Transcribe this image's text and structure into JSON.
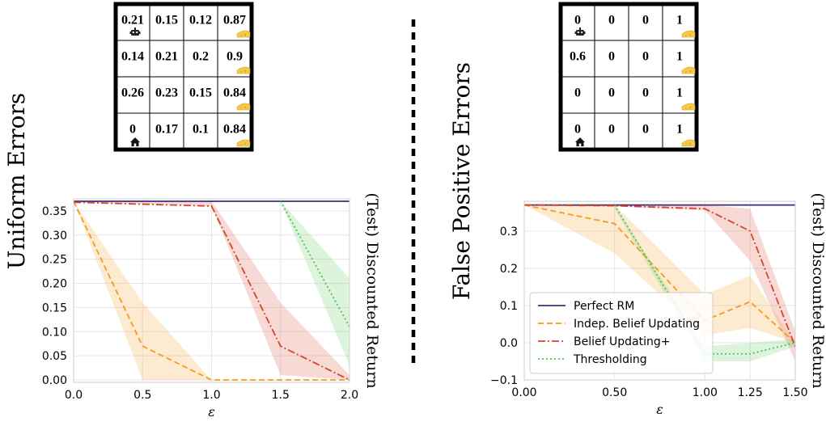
{
  "colors": {
    "perfect_rm": "#3f2b7a",
    "indep_belief": "#f59b1a",
    "belief_updating_plus": "#d6452b",
    "thresholding": "#4fc24f",
    "grid": "#e6e6e6",
    "divider": "#000000"
  },
  "icons": {
    "agent": "robot-icon",
    "goal": "cheese-icon",
    "home": "home-icon"
  },
  "left_panel": {
    "row_label": "Uniform Errors",
    "grid_values": [
      [
        "0.21",
        "0.15",
        "0.12",
        "0.87"
      ],
      [
        "0.14",
        "0.21",
        "0.2",
        "0.9"
      ],
      [
        "0.26",
        "0.23",
        "0.15",
        "0.84"
      ],
      [
        "0",
        "0.17",
        "0.1",
        "0.84"
      ]
    ]
  },
  "right_panel": {
    "row_label": "False Positive Errors",
    "grid_values": [
      [
        "0",
        "0",
        "0",
        "1"
      ],
      [
        "0.6",
        "0",
        "0",
        "1"
      ],
      [
        "0",
        "0",
        "0",
        "1"
      ],
      [
        "0",
        "0",
        "0",
        "1"
      ]
    ]
  },
  "chart_data": [
    {
      "type": "line",
      "xlabel": "ε",
      "ylabel": "(Test) Discounted Return",
      "x_ticks": [
        "0.0",
        "0.5",
        "1.0",
        "1.5",
        "2.0"
      ],
      "y_ticks": [
        "0.00",
        "0.05",
        "0.10",
        "0.15",
        "0.20",
        "0.25",
        "0.30",
        "0.35"
      ],
      "xlim": [
        0,
        2.0
      ],
      "ylim": [
        -0.005,
        0.375
      ],
      "grid": true,
      "series": [
        {
          "name": "Perfect RM",
          "style": "solid",
          "x": [
            0,
            0.5,
            1.0,
            1.5,
            2.0
          ],
          "y": [
            0.37,
            0.37,
            0.37,
            0.37,
            0.37
          ]
        },
        {
          "name": "Indep. Belief Updating",
          "style": "dashed",
          "x": [
            0,
            0.5,
            1.0,
            1.5,
            2.0
          ],
          "y": [
            0.37,
            0.07,
            0.0,
            0.0,
            0.0
          ],
          "band_low": [
            0.37,
            0.0,
            0.0,
            0.0,
            0.0
          ],
          "band_high": [
            0.37,
            0.16,
            0.0,
            0.0,
            0.0
          ]
        },
        {
          "name": "Belief Updating+",
          "style": "dashdot",
          "x": [
            0,
            0.5,
            1.0,
            1.5,
            2.0
          ],
          "y": [
            0.368,
            0.364,
            0.36,
            0.07,
            0.0
          ],
          "band_low": [
            0.368,
            0.364,
            0.36,
            0.01,
            0.0
          ],
          "band_high": [
            0.37,
            0.37,
            0.37,
            0.16,
            0.01
          ]
        },
        {
          "name": "Thresholding",
          "style": "dotted",
          "x": [
            1.5,
            2.0
          ],
          "y": [
            0.37,
            0.11
          ],
          "band_low": [
            0.37,
            0.03
          ],
          "band_high": [
            0.37,
            0.21
          ]
        }
      ]
    },
    {
      "type": "line",
      "xlabel": "ε",
      "ylabel": "(Test) Discounted Return",
      "x_ticks": [
        "0.00",
        "0.50",
        "1.00",
        "1.25",
        "1.50"
      ],
      "x_tick_values": [
        0,
        0.5,
        1.0,
        1.25,
        1.5
      ],
      "y_ticks": [
        "−0.1",
        "0.0",
        "0.1",
        "0.2",
        "0.3"
      ],
      "xlim": [
        0,
        1.5
      ],
      "ylim": [
        -0.1,
        0.38
      ],
      "grid": true,
      "legend_position": "bottom-left",
      "series": [
        {
          "name": "Perfect RM",
          "style": "solid",
          "x": [
            0,
            0.5,
            1.0,
            1.25,
            1.5
          ],
          "y": [
            0.37,
            0.37,
            0.37,
            0.37,
            0.37
          ]
        },
        {
          "name": "Indep. Belief Updating",
          "style": "dashed",
          "x": [
            0,
            0.5,
            1.0,
            1.25,
            1.5
          ],
          "y": [
            0.37,
            0.32,
            0.06,
            0.11,
            0.0
          ],
          "band_low": [
            0.37,
            0.24,
            0.02,
            0.04,
            0.0
          ],
          "band_high": [
            0.37,
            0.37,
            0.13,
            0.18,
            0.0
          ]
        },
        {
          "name": "Belief Updating+",
          "style": "dashdot",
          "x": [
            0,
            0.5,
            1.0,
            1.25,
            1.5
          ],
          "y": [
            0.37,
            0.368,
            0.36,
            0.3,
            -0.01
          ],
          "band_low": [
            0.37,
            0.366,
            0.355,
            0.22,
            -0.05
          ],
          "band_high": [
            0.37,
            0.37,
            0.37,
            0.36,
            0.03
          ]
        },
        {
          "name": "Thresholding",
          "style": "dotted",
          "x": [
            0.5,
            1.0,
            1.25,
            1.5
          ],
          "y": [
            0.37,
            -0.03,
            -0.03,
            0.0
          ],
          "band_low": [
            0.36,
            -0.05,
            -0.05,
            -0.01
          ],
          "band_high": [
            0.37,
            -0.01,
            0.0,
            0.01
          ]
        }
      ]
    }
  ]
}
